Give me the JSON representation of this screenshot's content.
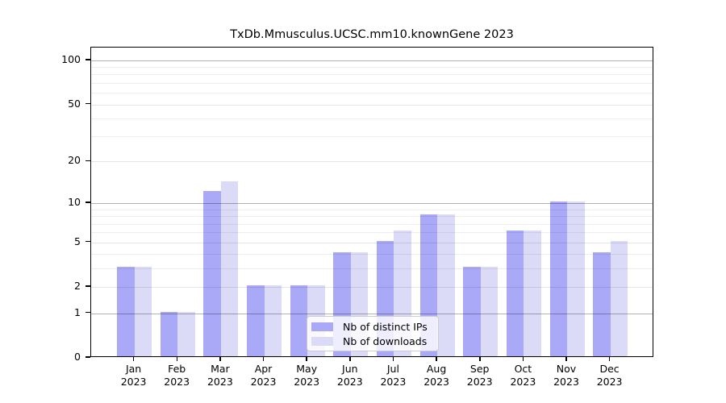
{
  "chart_data": {
    "type": "bar",
    "title": "TxDb.Mmusculus.UCSC.mm10.knownGene 2023",
    "categories": [
      "Jan",
      "Feb",
      "Mar",
      "Apr",
      "May",
      "Jun",
      "Jul",
      "Aug",
      "Sep",
      "Oct",
      "Nov",
      "Dec"
    ],
    "x_year": "2023",
    "series": [
      {
        "name": "Nb of distinct IPs",
        "color": "#a9a9f8",
        "values": [
          3,
          1,
          12,
          2,
          2,
          4,
          5,
          8,
          3,
          6,
          10,
          4
        ]
      },
      {
        "name": "Nb of downloads",
        "color": "#dbdbf8",
        "values": [
          3,
          1,
          14,
          2,
          2,
          4,
          6,
          8,
          3,
          6,
          10,
          5
        ]
      }
    ],
    "y_axis": {
      "scale": "log1p",
      "tick_labels": [
        0,
        1,
        2,
        5,
        10,
        20,
        50,
        100
      ],
      "minor_gridlines": [
        3,
        4,
        6,
        7,
        8,
        9,
        30,
        40,
        60,
        70,
        80,
        90
      ],
      "range": [
        0,
        100
      ]
    },
    "legend_position": "lower center",
    "grid": true,
    "colors": {
      "axis": "#000000",
      "grid_major": "rgba(0,0,0,0.30)",
      "grid_minor": "rgba(0,0,0,0.07)"
    }
  }
}
